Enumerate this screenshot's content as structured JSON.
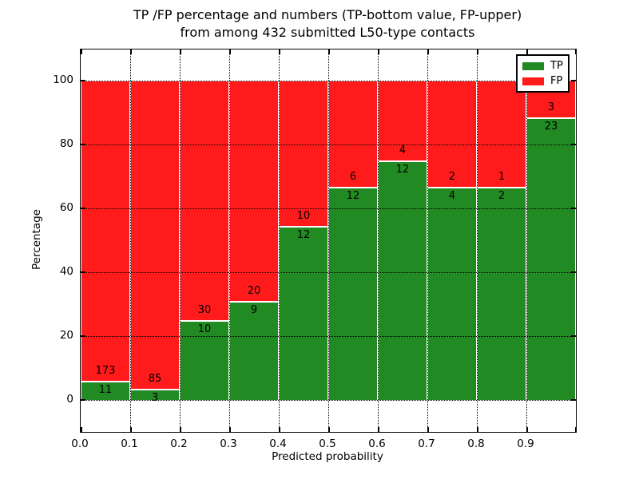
{
  "title": {
    "line1": "TP /FP percentage and numbers (TP-bottom value, FP-upper)",
    "line2": "from among 432 submitted L50-type contacts"
  },
  "chart_data": {
    "type": "bar",
    "subtype": "stacked-percentage-histogram",
    "title": "TP /FP percentage and numbers (TP-bottom value, FP-upper) from among 432 submitted L50-type contacts",
    "xlabel": "Predicted probability",
    "ylabel": "Percentage",
    "total_contacts": 432,
    "bin_starts": [
      0.0,
      0.1,
      0.2,
      0.3,
      0.4,
      0.5,
      0.6,
      0.7,
      0.8,
      0.9
    ],
    "bin_width": 0.1,
    "x_tick_labels": [
      "0.0",
      "0.1",
      "0.2",
      "0.3",
      "0.4",
      "0.5",
      "0.6",
      "0.7",
      "0.8",
      "0.9"
    ],
    "y_tick_values": [
      0,
      20,
      40,
      60,
      80,
      100
    ],
    "y_tick_labels": [
      "0",
      "20",
      "40",
      "60",
      "80",
      "100"
    ],
    "xlim": [
      0.0,
      1.0
    ],
    "ylim": [
      -10,
      109.75
    ],
    "grid": "dotted-black-both-axes",
    "bars_normalized_to": 100,
    "series": [
      {
        "name": "TP",
        "color": "#228a22",
        "values": [
          11,
          3,
          10,
          9,
          12,
          12,
          12,
          4,
          2,
          23
        ]
      },
      {
        "name": "FP",
        "color": "#ff1b1b",
        "values": [
          173,
          85,
          30,
          20,
          10,
          6,
          4,
          2,
          1,
          3
        ]
      }
    ],
    "tp_percent_per_bin": [
      5.98,
      3.41,
      25.0,
      31.03,
      54.55,
      66.67,
      75.0,
      66.67,
      66.67,
      88.46
    ],
    "legend": {
      "position": "upper-right",
      "entries": [
        {
          "label": "TP",
          "color": "#228a22"
        },
        {
          "label": "FP",
          "color": "#ff1b1b"
        }
      ]
    }
  }
}
